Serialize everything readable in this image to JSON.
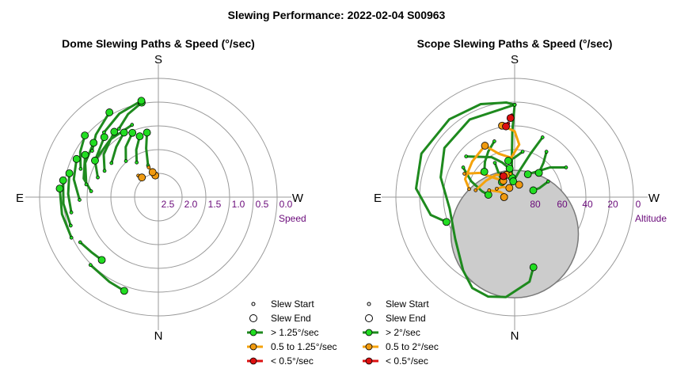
{
  "title": "Slewing Performance: 2022-02-04 S00963",
  "compass": {
    "top": "S",
    "bottom": "N",
    "left": "E",
    "right": "W"
  },
  "colors": {
    "fast": "#1e8a1e",
    "fast_marker": "#22dd22",
    "medium": "#f5a20a",
    "medium_marker": "#f09a10",
    "slow": "#dd1010",
    "grid": "#9a9a9a",
    "tick": "#6a0a7a",
    "obscured": "#cccccc"
  },
  "chart_data": [
    {
      "type": "polar-path",
      "title": "Dome Slewing Paths & Speed (°/sec)",
      "radial_label": "Speed",
      "radial_ticks": [
        "2.5",
        "2.0",
        "1.5",
        "1.0",
        "0.5",
        "0.0"
      ],
      "radial_tick_values": [
        2.5,
        2.0,
        1.5,
        1.0,
        0.5,
        0.0
      ],
      "legend": {
        "start": "Slew Start",
        "end": "Slew End",
        "fast": "> 1.25°/sec",
        "medium": "0.5 to 1.25°/sec",
        "slow": "< 0.5°/sec"
      },
      "paths": [
        {
          "speed_class": "fast",
          "points": [
            [
              162,
              2.25
            ],
            [
              166,
              1.8
            ],
            [
              170,
              1.4
            ]
          ]
        },
        {
          "speed_class": "fast",
          "points": [
            [
              148,
              2.05
            ],
            [
              155,
              1.75
            ],
            [
              163,
              1.45
            ]
          ]
        },
        {
          "speed_class": "fast",
          "points": [
            [
              138,
              1.85
            ],
            [
              147,
              1.55
            ],
            [
              158,
              1.3
            ]
          ]
        },
        {
          "speed_class": "fast",
          "points": [
            [
              126,
              1.6
            ],
            [
              140,
              1.4
            ],
            [
              152,
              1.2
            ]
          ]
        },
        {
          "speed_class": "fast",
          "points": [
            [
              116,
              1.55
            ],
            [
              128,
              1.3
            ],
            [
              146,
              1.05
            ]
          ]
        },
        {
          "speed_class": "fast",
          "points": [
            [
              108,
              1.45
            ],
            [
              120,
              1.2
            ],
            [
              138,
              1.0
            ]
          ]
        },
        {
          "speed_class": "fast",
          "points": [
            [
              100,
              1.2
            ],
            [
              115,
              1.0
            ],
            [
              130,
              0.9
            ]
          ]
        },
        {
          "speed_class": "fast",
          "points": [
            [
              95,
              1.35
            ],
            [
              104,
              1.1
            ],
            [
              120,
              0.9
            ]
          ]
        },
        {
          "speed_class": "fast",
          "points": [
            [
              88,
              1.05
            ],
            [
              102,
              0.85
            ],
            [
              115,
              0.75
            ]
          ]
        },
        {
          "speed_class": "fast",
          "points": [
            [
              80,
              0.8
            ],
            [
              92,
              0.75
            ],
            [
              105,
              0.7
            ]
          ]
        },
        {
          "speed_class": "fast",
          "points": [
            [
              72,
              0.7
            ],
            [
              86,
              0.62
            ],
            [
              100,
              0.58
            ]
          ]
        },
        {
          "speed_class": "fast",
          "points": [
            [
              65,
              0.6
            ],
            [
              80,
              0.55
            ],
            [
              95,
              0.52
            ]
          ]
        },
        {
          "speed_class": "fast",
          "points": [
            [
              60,
              0.75
            ],
            [
              50,
              0.85
            ],
            [
              42,
              0.9
            ]
          ]
        },
        {
          "speed_class": "fast",
          "points": [
            [
              150,
              1.05
            ],
            [
              160,
              0.8
            ],
            [
              170,
              0.6
            ]
          ]
        },
        {
          "speed_class": "fast",
          "points": [
            [
              140,
              0.9
            ],
            [
              155,
              0.7
            ],
            [
              170,
              0.55
            ]
          ]
        },
        {
          "speed_class": "fast",
          "points": [
            [
              125,
              1.0
            ],
            [
              135,
              0.8
            ],
            [
              150,
              0.55
            ]
          ]
        },
        {
          "speed_class": "fast",
          "points": [
            [
              110,
              0.95
            ],
            [
              120,
              0.75
            ],
            [
              130,
              0.6
            ]
          ]
        },
        {
          "speed_class": "fast",
          "points": [
            [
              160,
              1.1
            ],
            [
              140,
              1.15
            ],
            [
              120,
              1.2
            ]
          ]
        },
        {
          "speed_class": "fast",
          "points": [
            [
              45,
              0.6
            ],
            [
              30,
              0.55
            ],
            [
              20,
              0.5
            ]
          ]
        },
        {
          "speed_class": "medium",
          "points": [
            [
              168,
              2.4
            ],
            [
              172,
              2.55
            ]
          ]
        },
        {
          "speed_class": "medium",
          "points": [
            [
              162,
              2.3
            ],
            [
              167,
              2.45
            ]
          ]
        },
        {
          "speed_class": "medium",
          "points": [
            [
              137,
              2.35
            ],
            [
              140,
              2.45
            ]
          ]
        }
      ]
    },
    {
      "type": "polar-path",
      "title": "Scope Slewing Paths & Speed (°/sec)",
      "radial_label": "Altitude",
      "radial_ticks": [
        "80",
        "60",
        "40",
        "20",
        "0"
      ],
      "radial_tick_values": [
        80,
        60,
        40,
        20,
        0
      ],
      "obscured_region": {
        "center_az": 0,
        "center_alt": 62,
        "radius_deg": 21
      },
      "legend": {
        "start": "Slew Start",
        "end": "Slew End",
        "fast": "> 2°/sec",
        "medium": "0.5 to 2°/sec",
        "slow": "< 0.5°/sec"
      },
      "paths": [
        {
          "speed_class": "fast",
          "points": [
            [
              180,
              20
            ],
            [
              175,
              18
            ],
            [
              160,
              15
            ],
            [
              140,
              13
            ],
            [
              115,
              12
            ],
            [
              95,
              15
            ],
            [
              78,
              25
            ],
            [
              70,
              35
            ]
          ]
        },
        {
          "speed_class": "fast",
          "points": [
            [
              180,
              20
            ],
            [
              150,
              22
            ],
            [
              125,
              25
            ],
            [
              105,
              32
            ],
            [
              80,
              40
            ],
            [
              55,
              35
            ],
            [
              35,
              22
            ],
            [
              25,
              14
            ],
            [
              15,
              12
            ],
            [
              5,
              14
            ],
            [
              -10,
              25
            ],
            [
              -15,
              35
            ]
          ]
        },
        {
          "speed_class": "fast",
          "points": [
            [
              180,
              20
            ],
            [
              178,
              40
            ],
            [
              176,
              60
            ],
            [
              172,
              75
            ]
          ]
        },
        {
          "speed_class": "fast",
          "points": [
            [
              120,
              45
            ],
            [
              110,
              55
            ],
            [
              100,
              65
            ],
            [
              95,
              70
            ]
          ]
        },
        {
          "speed_class": "fast",
          "points": [
            [
              130,
              42
            ],
            [
              150,
              55
            ],
            [
              160,
              62
            ],
            [
              170,
              68
            ]
          ]
        },
        {
          "speed_class": "fast",
          "points": [
            [
              160,
              45
            ],
            [
              150,
              50
            ],
            [
              140,
              55
            ],
            [
              130,
              60
            ]
          ]
        },
        {
          "speed_class": "fast",
          "points": [
            [
              205,
              40
            ],
            [
              200,
              55
            ],
            [
              190,
              70
            ],
            [
              175,
              78
            ]
          ]
        },
        {
          "speed_class": "fast",
          "points": [
            [
              215,
              48
            ],
            [
              220,
              56
            ],
            [
              225,
              64
            ]
          ]
        },
        {
          "speed_class": "fast",
          "points": [
            [
              240,
              45
            ],
            [
              230,
              55
            ],
            [
              220,
              65
            ],
            [
              210,
              70
            ]
          ]
        },
        {
          "speed_class": "fast",
          "points": [
            [
              245,
              62
            ],
            [
              250,
              70
            ],
            [
              250,
              75
            ]
          ]
        },
        {
          "speed_class": "fast",
          "points": [
            [
              190,
              55
            ],
            [
              180,
              60
            ],
            [
              170,
              62
            ]
          ]
        },
        {
          "speed_class": "fast",
          "points": [
            [
              150,
              60
            ],
            [
              145,
              70
            ],
            [
              140,
              75
            ]
          ]
        },
        {
          "speed_class": "medium",
          "points": [
            [
              150,
              45
            ],
            [
              160,
              55
            ],
            [
              175,
              60
            ],
            [
              185,
              50
            ],
            [
              180,
              40
            ],
            [
              170,
              35
            ]
          ]
        },
        {
          "speed_class": "medium",
          "points": [
            [
              115,
              48
            ],
            [
              125,
              58
            ],
            [
              135,
              70
            ],
            [
              145,
              75
            ]
          ]
        },
        {
          "speed_class": "medium",
          "points": [
            [
              100,
              60
            ],
            [
              120,
              65
            ],
            [
              140,
              68
            ],
            [
              160,
              72
            ]
          ]
        },
        {
          "speed_class": "medium",
          "points": [
            [
              115,
              75
            ],
            [
              130,
              78
            ],
            [
              150,
              82
            ]
          ]
        },
        {
          "speed_class": "medium",
          "points": [
            [
              105,
              70
            ],
            [
              110,
              78
            ],
            [
              100,
              84
            ],
            [
              90,
              82
            ]
          ]
        },
        {
          "speed_class": "medium",
          "points": [
            [
              170,
              72
            ],
            [
              185,
              78
            ],
            [
              200,
              80
            ]
          ]
        },
        {
          "speed_class": "medium",
          "points": [
            [
              100,
              55
            ],
            [
              110,
              50
            ],
            [
              130,
              48
            ],
            [
              150,
              45
            ]
          ]
        },
        {
          "speed_class": "slow",
          "points": [
            [
              178,
              28
            ],
            [
              177,
              30
            ]
          ]
        },
        {
          "speed_class": "slow",
          "points": [
            [
              175,
              34
            ],
            [
              173,
              36
            ]
          ]
        },
        {
          "speed_class": "slow",
          "points": [
            [
              150,
              70
            ],
            [
              152,
              72
            ]
          ]
        }
      ]
    }
  ]
}
